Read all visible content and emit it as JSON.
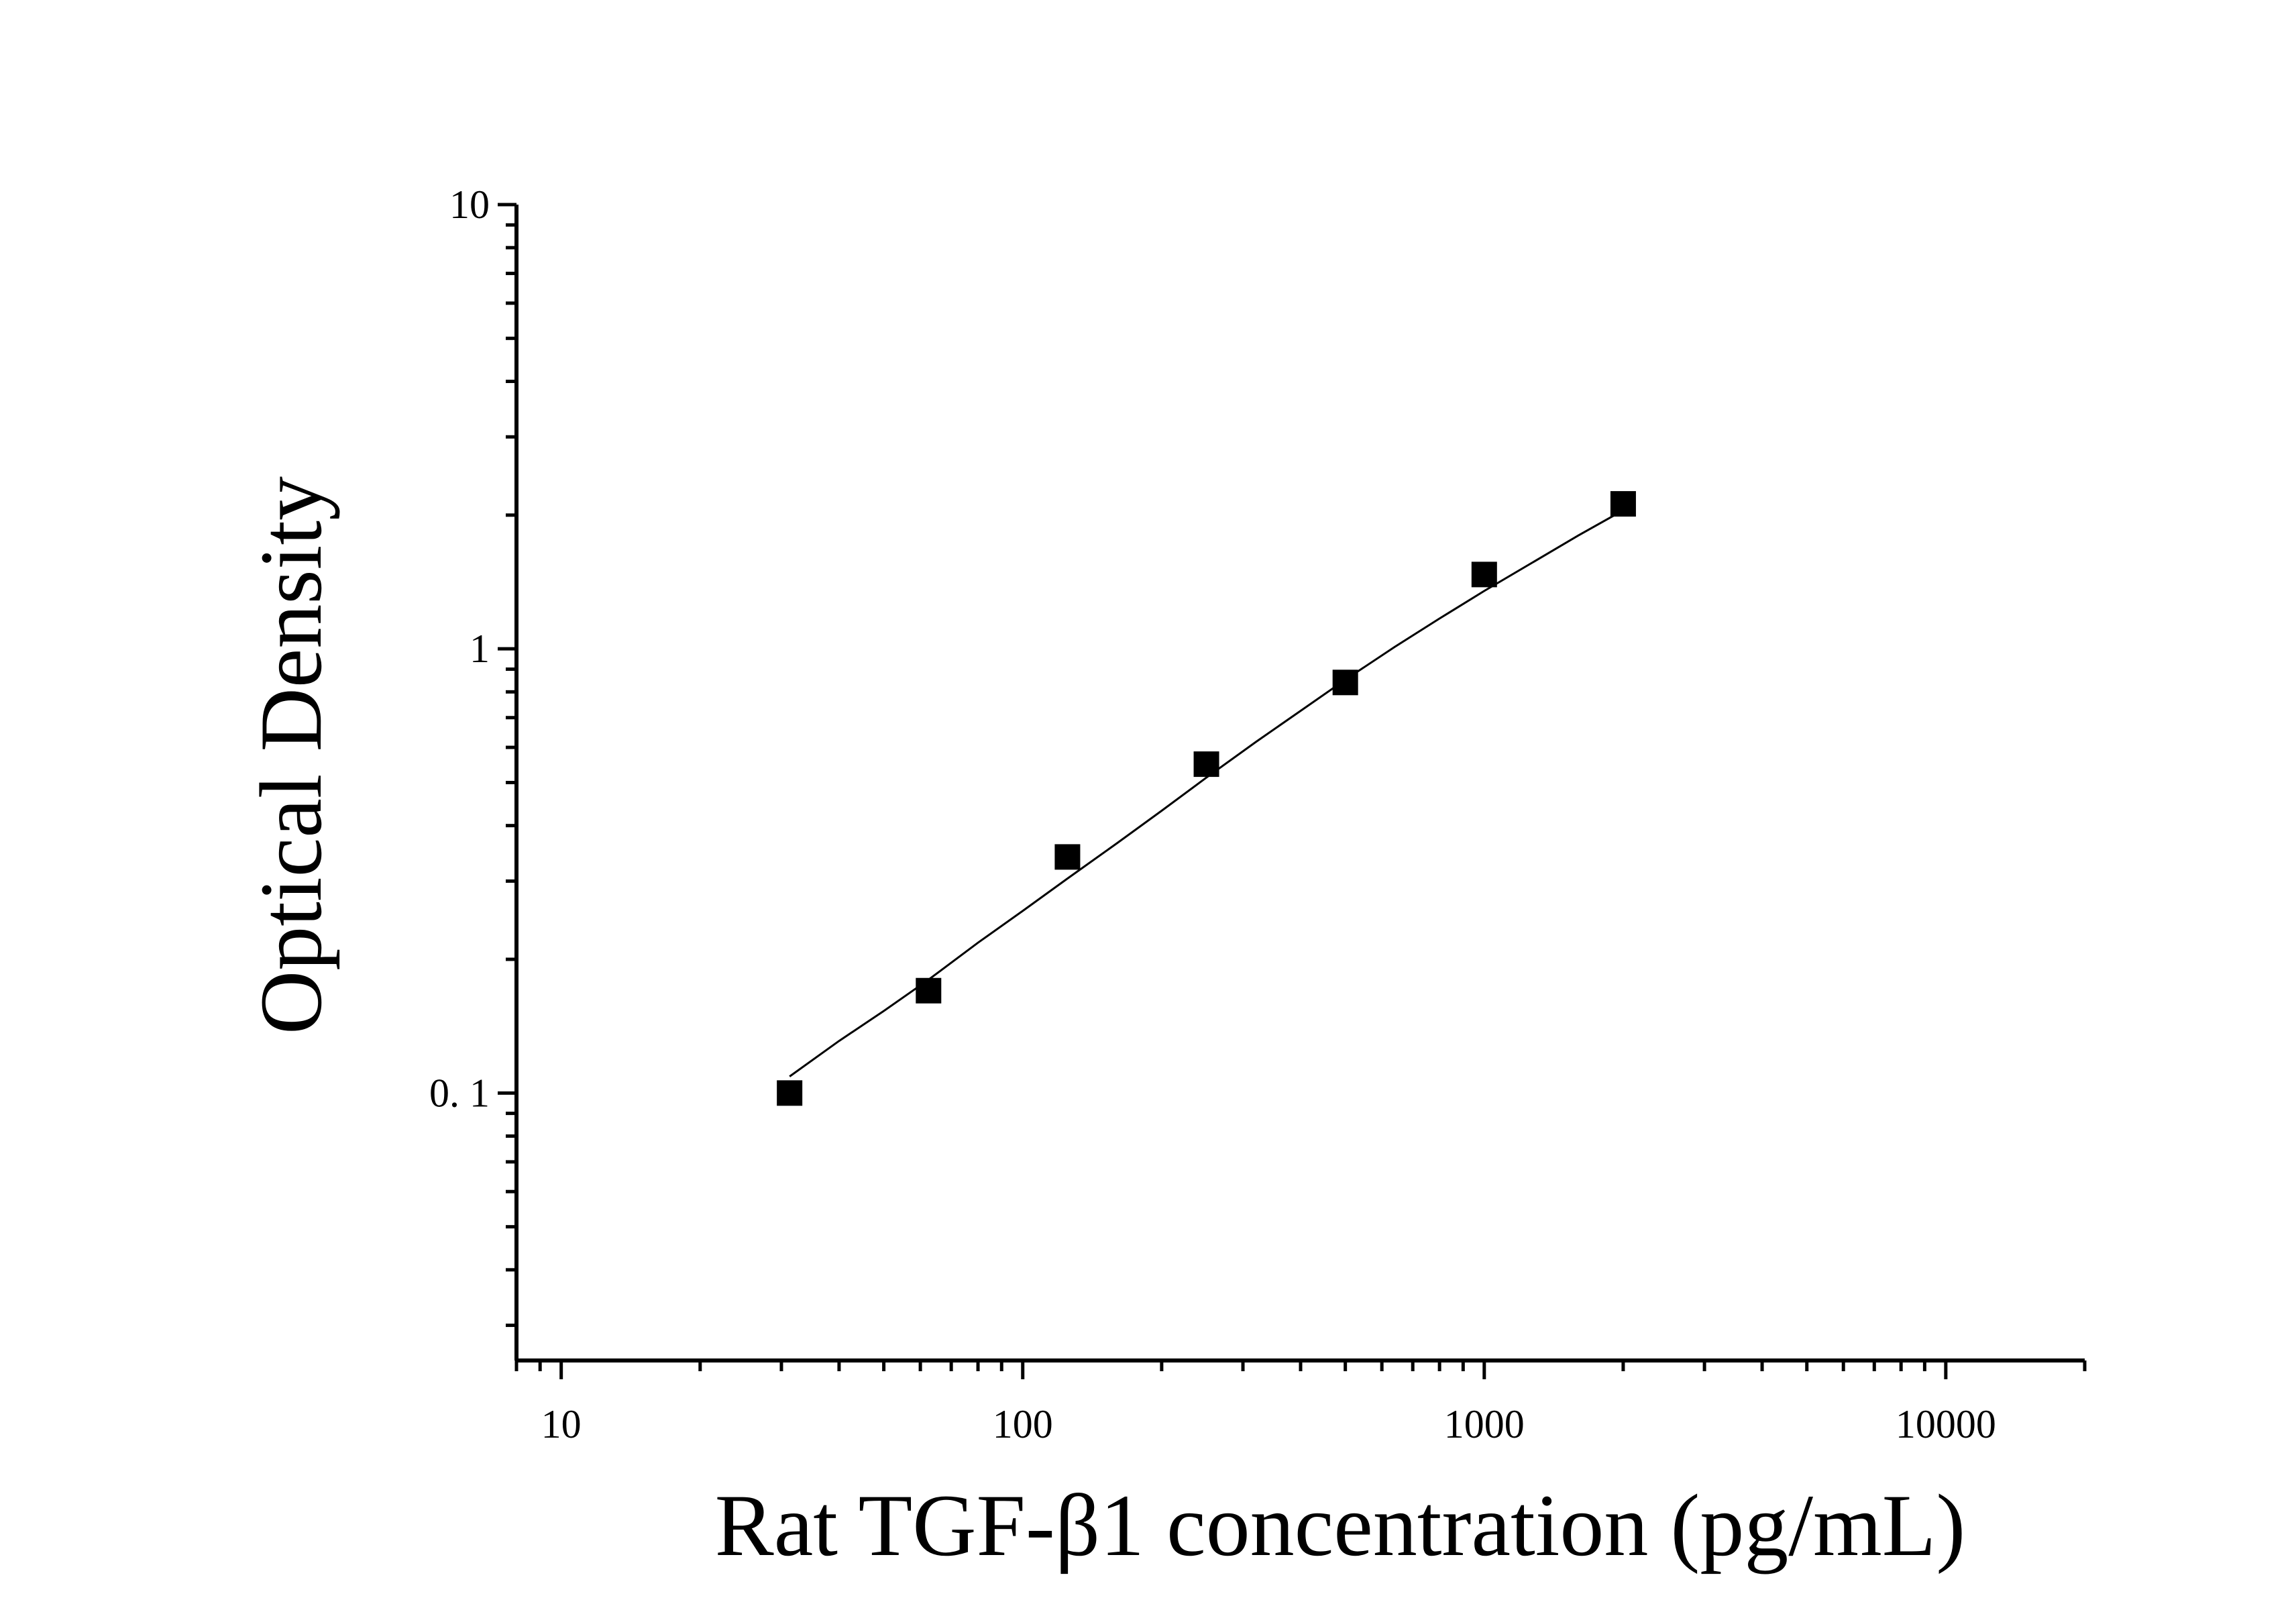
{
  "chart_data": {
    "type": "scatter",
    "title": "",
    "xlabel": "Rat TGF-β1 concentration (pg/mL)",
    "ylabel": "Optical Density",
    "x_scale": "log",
    "y_scale": "log",
    "xlim": [
      8,
      20000
    ],
    "ylim": [
      0.025,
      10
    ],
    "x_ticks": [
      {
        "value": 10,
        "label": "10"
      },
      {
        "value": 100,
        "label": "100"
      },
      {
        "value": 1000,
        "label": "1000"
      },
      {
        "value": 10000,
        "label": "10000"
      }
    ],
    "y_ticks": [
      {
        "value": 0.1,
        "label": "0. 1"
      },
      {
        "value": 1,
        "label": "1"
      },
      {
        "value": 10,
        "label": "10"
      }
    ],
    "grid": false,
    "legend": "none",
    "series": [
      {
        "marker": "square",
        "color": "#000000",
        "x": [
          31.25,
          62.5,
          125,
          250,
          500,
          1000,
          2000
        ],
        "y": [
          0.1,
          0.17,
          0.34,
          0.55,
          0.84,
          1.47,
          2.12
        ]
      }
    ],
    "fit_curve": {
      "color": "#000000",
      "x": [
        31.25,
        40,
        50,
        62.5,
        80,
        100,
        125,
        160,
        200,
        250,
        320,
        400,
        500,
        640,
        800,
        1000,
        1280,
        1600,
        2000
      ],
      "y": [
        0.109,
        0.131,
        0.153,
        0.18,
        0.218,
        0.257,
        0.304,
        0.365,
        0.432,
        0.513,
        0.617,
        0.725,
        0.852,
        1.01,
        1.17,
        1.35,
        1.57,
        1.8,
        2.05
      ]
    }
  }
}
